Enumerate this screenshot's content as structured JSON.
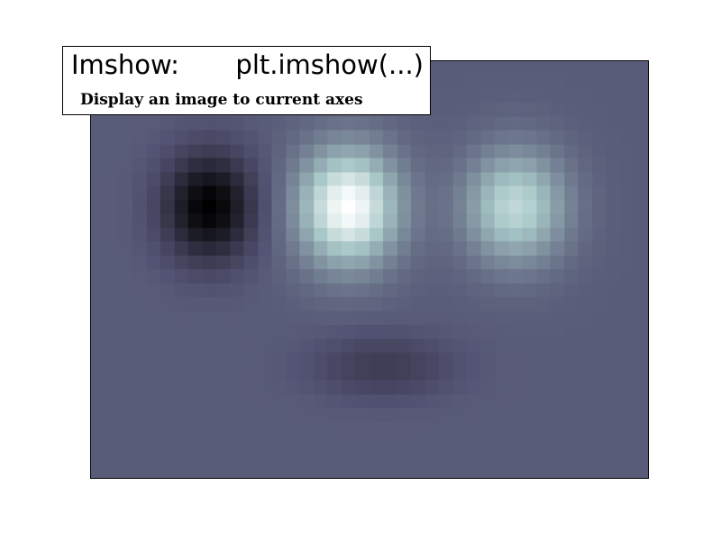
{
  "title_box": {
    "heading": "Imshow:",
    "code": "plt.imshow(...)",
    "description": "Display an image to current axes"
  },
  "chart_data": {
    "type": "heatmap",
    "colormap": "bone",
    "interpolation": "nearest",
    "axes_visible": false,
    "grid": false,
    "rows": 30,
    "cols": 40,
    "value_range": [
      0.0,
      1.0
    ],
    "background_level": 0.4,
    "features": [
      {
        "kind": "dark",
        "center_col": 8.5,
        "center_row": 10.5,
        "peak": 0.0
      },
      {
        "kind": "bright",
        "center_col": 18.5,
        "center_row": 10.5,
        "peak": 1.0
      },
      {
        "kind": "bright",
        "center_col": 30.5,
        "center_row": 10.5,
        "peak": 0.82
      },
      {
        "kind": "dark",
        "center_col": 21.0,
        "center_row": 22.0,
        "peak": 0.27
      }
    ]
  },
  "colors": {
    "frame": "#000000",
    "background": "#ffffff"
  }
}
